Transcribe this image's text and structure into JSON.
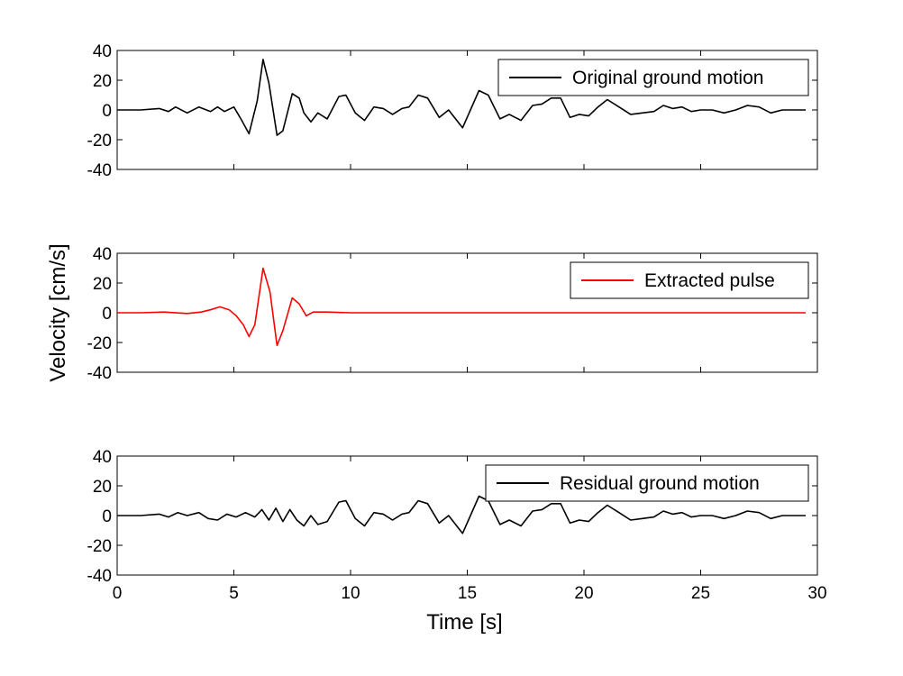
{
  "chart_data": {
    "type": "line",
    "xlabel": "Time [s]",
    "ylabel": "Velocity [cm/s]",
    "xlim": [
      0,
      30
    ],
    "xticks": [
      0,
      5,
      10,
      15,
      20,
      25,
      30
    ],
    "ylim": [
      -40,
      40
    ],
    "yticks": [
      40,
      20,
      0,
      -20,
      -40
    ],
    "grid": false,
    "legend_position": "top-right",
    "panels": [
      {
        "series": [
          {
            "name": "Original ground motion",
            "color": "#000000",
            "x": [
              0,
              1,
              1.8,
              2.2,
              2.5,
              3.0,
              3.5,
              4.0,
              4.3,
              4.6,
              5.0,
              5.3,
              5.65,
              6.0,
              6.25,
              6.5,
              6.85,
              7.1,
              7.5,
              7.8,
              8.0,
              8.3,
              8.6,
              9.0,
              9.5,
              9.8,
              10.2,
              10.6,
              11.0,
              11.4,
              11.8,
              12.2,
              12.5,
              12.9,
              13.3,
              13.8,
              14.2,
              14.8,
              15.5,
              15.9,
              16.4,
              16.8,
              17.3,
              17.8,
              18.2,
              18.6,
              19.0,
              19.4,
              19.8,
              20.2,
              20.6,
              21.0,
              21.5,
              22.0,
              22.5,
              23.0,
              23.4,
              23.8,
              24.2,
              24.6,
              25.0,
              25.5,
              26.0,
              26.5,
              27.0,
              27.5,
              28.0,
              28.5,
              29.0,
              29.5
            ],
            "values": [
              0,
              0,
              1,
              -1,
              2,
              -2,
              2,
              -1,
              2,
              -1,
              2,
              -6,
              -16,
              6,
              34,
              18,
              -17,
              -14,
              11,
              8,
              -2,
              -8,
              -2,
              -6,
              9,
              10,
              -2,
              -7,
              2,
              1,
              -3,
              1,
              2,
              10,
              8,
              -5,
              0,
              -12,
              13,
              10,
              -6,
              -3,
              -7,
              3,
              4,
              8,
              8,
              -5,
              -3,
              -4,
              2,
              7,
              2,
              -3,
              -2,
              -1,
              3,
              1,
              2,
              -1,
              0,
              0,
              -2,
              0,
              3,
              2,
              -2,
              0,
              0,
              0
            ]
          }
        ]
      },
      {
        "series": [
          {
            "name": "Extracted pulse",
            "color": "#ff0000",
            "x": [
              0,
              1,
              2.0,
              3.0,
              3.6,
              4.0,
              4.4,
              4.8,
              5.1,
              5.4,
              5.65,
              5.9,
              6.25,
              6.55,
              6.85,
              7.1,
              7.5,
              7.8,
              8.1,
              8.4,
              9.0,
              10.0,
              11.0,
              15.0,
              20.0,
              25.0,
              29.5
            ],
            "values": [
              0,
              0,
              0.5,
              -0.5,
              0.5,
              2,
              4,
              2,
              -2,
              -8,
              -16,
              -8,
              30,
              14,
              -22,
              -12,
              10,
              6,
              -2,
              0.5,
              0.5,
              0,
              0,
              0,
              0,
              0,
              0
            ]
          }
        ]
      },
      {
        "series": [
          {
            "name": "Residual ground motion",
            "color": "#000000",
            "x": [
              0,
              1,
              1.8,
              2.2,
              2.6,
              3.0,
              3.5,
              3.9,
              4.3,
              4.7,
              5.1,
              5.5,
              5.9,
              6.2,
              6.5,
              6.8,
              7.1,
              7.4,
              7.7,
              8.0,
              8.3,
              8.6,
              9.0,
              9.5,
              9.8,
              10.2,
              10.6,
              11.0,
              11.4,
              11.8,
              12.2,
              12.5,
              12.9,
              13.3,
              13.8,
              14.2,
              14.8,
              15.5,
              15.9,
              16.4,
              16.8,
              17.3,
              17.8,
              18.2,
              18.6,
              19.0,
              19.4,
              19.8,
              20.2,
              20.6,
              21.0,
              21.5,
              22.0,
              22.5,
              23.0,
              23.4,
              23.8,
              24.2,
              24.6,
              25.0,
              25.5,
              26.0,
              26.5,
              27.0,
              27.5,
              28.0,
              28.5,
              29.0,
              29.5
            ],
            "values": [
              0,
              0,
              1,
              -1,
              2,
              0,
              2,
              -2,
              -3,
              1,
              -1,
              2,
              -1,
              4,
              -3,
              5,
              -4,
              4,
              -3,
              -7,
              0,
              -6,
              -4,
              9,
              10,
              -2,
              -7,
              2,
              1,
              -3,
              1,
              2,
              10,
              8,
              -5,
              0,
              -12,
              13,
              10,
              -6,
              -3,
              -7,
              3,
              4,
              8,
              8,
              -5,
              -3,
              -4,
              2,
              7,
              2,
              -3,
              -2,
              -1,
              3,
              1,
              2,
              -1,
              0,
              0,
              -2,
              0,
              3,
              2,
              -2,
              0,
              0,
              0
            ]
          }
        ]
      }
    ]
  }
}
